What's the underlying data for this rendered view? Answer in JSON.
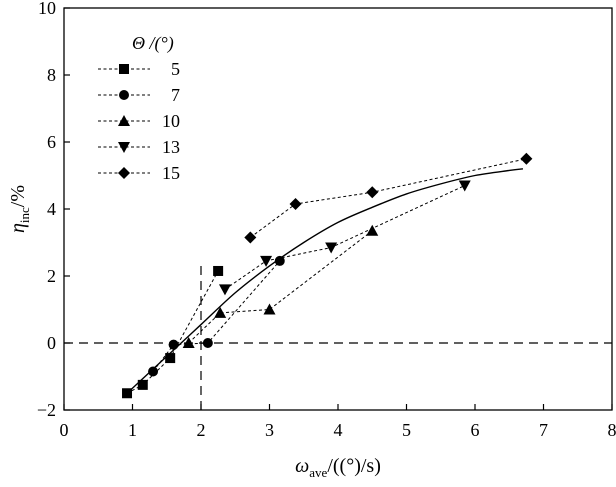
{
  "chart_data": {
    "type": "scatter",
    "xlabel": {
      "symbol": "ω",
      "sub": "ave",
      "unit": "/((°)/s)"
    },
    "ylabel": {
      "symbol": "η",
      "sub": "inc",
      "unit": "/%"
    },
    "xlim": [
      0,
      8
    ],
    "ylim": [
      -2,
      10
    ],
    "xticks": [
      0,
      1,
      2,
      3,
      4,
      5,
      6,
      7,
      8
    ],
    "yticks": [
      -2,
      0,
      2,
      4,
      6,
      8,
      10
    ],
    "grid": false,
    "legend": {
      "title": "Θ /(°)",
      "placement": "top-left"
    },
    "series": [
      {
        "name": "5",
        "marker": "square",
        "points": [
          [
            0.92,
            -1.5
          ],
          [
            1.15,
            -1.25
          ],
          [
            1.55,
            -0.45
          ],
          [
            2.25,
            2.15
          ]
        ]
      },
      {
        "name": "7",
        "marker": "circle",
        "points": [
          [
            1.3,
            -0.85
          ],
          [
            1.6,
            -0.05
          ],
          [
            2.1,
            0.0
          ],
          [
            3.15,
            2.45
          ]
        ]
      },
      {
        "name": "10",
        "marker": "triangle-up",
        "points": [
          [
            1.82,
            0.0
          ],
          [
            2.28,
            0.9
          ],
          [
            3.0,
            1.0
          ],
          [
            4.5,
            3.35
          ]
        ]
      },
      {
        "name": "13",
        "marker": "triangle-down",
        "points": [
          [
            2.35,
            1.6
          ],
          [
            2.95,
            2.45
          ],
          [
            3.9,
            2.85
          ],
          [
            5.85,
            4.7
          ]
        ]
      },
      {
        "name": "15",
        "marker": "diamond",
        "points": [
          [
            2.72,
            3.15
          ],
          [
            3.38,
            4.15
          ],
          [
            4.5,
            4.5
          ],
          [
            6.75,
            5.5
          ]
        ]
      }
    ],
    "fit_curve": {
      "style": "solid",
      "points": [
        [
          0.92,
          -1.5
        ],
        [
          1.5,
          -0.4
        ],
        [
          2.0,
          0.55
        ],
        [
          2.5,
          1.5
        ],
        [
          3.0,
          2.3
        ],
        [
          3.5,
          3.0
        ],
        [
          4.0,
          3.6
        ],
        [
          4.5,
          4.05
        ],
        [
          5.0,
          4.45
        ],
        [
          5.5,
          4.75
        ],
        [
          6.0,
          5.0
        ],
        [
          6.5,
          5.15
        ],
        [
          6.7,
          5.2
        ]
      ]
    },
    "reference_lines": [
      {
        "orientation": "horizontal",
        "value": 0,
        "style": "dashed"
      },
      {
        "orientation": "vertical",
        "value": 2.0,
        "from": -2,
        "to": 2.4,
        "style": "dashed"
      }
    ]
  }
}
